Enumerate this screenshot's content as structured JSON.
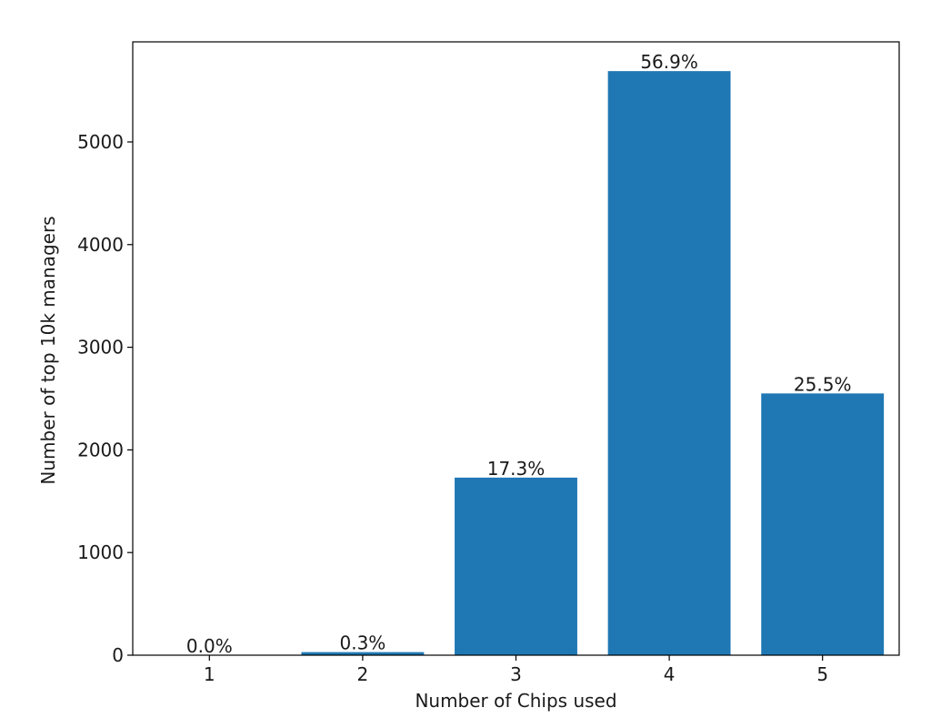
{
  "chart_data": {
    "type": "bar",
    "title": "",
    "xlabel": "Number of Chips used",
    "ylabel": "Number of top 10k managers",
    "categories": [
      "1",
      "2",
      "3",
      "4",
      "5"
    ],
    "values": [
      2,
      30,
      1730,
      5690,
      2550
    ],
    "data_labels": [
      "0.0%",
      "0.3%",
      "17.3%",
      "56.9%",
      "25.5%"
    ],
    "yticks": [
      0,
      1000,
      2000,
      3000,
      4000,
      5000
    ],
    "ytick_labels": [
      "0",
      "1000",
      "2000",
      "3000",
      "4000",
      "5000"
    ],
    "ylim": [
      0,
      5975
    ],
    "bar_color": "#1f77b4",
    "grid": false,
    "legend": "none"
  }
}
